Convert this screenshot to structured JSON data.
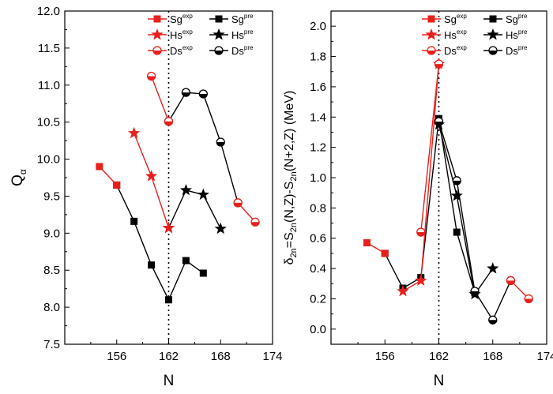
{
  "figure": {
    "panels": [
      {
        "xlabel": "N",
        "ylabel": "Q_α",
        "legend": [
          "Sg^exp",
          "Sg^pre",
          "Hs^exp",
          "Hs^pre",
          "Ds^exp",
          "Ds^pre"
        ]
      },
      {
        "xlabel": "N",
        "ylabel": "δ_2n=S_2n(N,Z)-S_2n(N+2,Z) (MeV)",
        "legend": [
          "Sg^exp",
          "Sg^pre",
          "Hs^exp",
          "Hs^pre",
          "Ds^exp",
          "Ds^pre"
        ]
      }
    ]
  },
  "chart_data": [
    {
      "type": "line",
      "xlabel": "N",
      "ylabel": "Qα",
      "xlim": [
        150,
        174
      ],
      "ylim": [
        7.5,
        12.0
      ],
      "xticks": [
        156,
        162,
        168,
        174
      ],
      "yticks": [
        7.5,
        8.0,
        8.5,
        9.0,
        9.5,
        10.0,
        10.5,
        11.0,
        11.5,
        12.0
      ],
      "ytick_labels": [
        "7.5",
        "8.0",
        "8.5",
        "9.0",
        "9.5",
        "10.0",
        "10.5",
        "11.0",
        "11.5",
        "12.0"
      ],
      "vline_x": 162,
      "legend_position": "top-right",
      "colors": {
        "exp": "#e8201c",
        "pre": "#000000"
      },
      "series": [
        {
          "name": "Sg^exp",
          "element": "Sg",
          "kind": "exp",
          "marker": "square",
          "color": "#e8201c",
          "segments": [
            {
              "x": [
                154,
                156
              ],
              "y": [
                9.9,
                9.65
              ]
            }
          ]
        },
        {
          "name": "Sg^pre",
          "element": "Sg",
          "kind": "pre",
          "marker": "square",
          "color": "#000000",
          "segments": [
            {
              "x": [
                156,
                158,
                160,
                162,
                164,
                166
              ],
              "y": [
                9.65,
                9.16,
                8.57,
                8.1,
                8.63,
                8.46
              ]
            }
          ]
        },
        {
          "name": "Hs^exp",
          "element": "Hs",
          "kind": "exp",
          "marker": "star",
          "color": "#e8201c",
          "segments": [
            {
              "x": [
                158,
                160,
                162
              ],
              "y": [
                10.35,
                9.77,
                9.07
              ]
            }
          ]
        },
        {
          "name": "Hs^pre",
          "element": "Hs",
          "kind": "pre",
          "marker": "star",
          "color": "#000000",
          "segments": [
            {
              "x": [
                162,
                164,
                166,
                168
              ],
              "y": [
                9.07,
                9.58,
                9.52,
                9.06
              ]
            }
          ]
        },
        {
          "name": "Ds^exp",
          "element": "Ds",
          "kind": "exp",
          "marker": "circle",
          "color": "#e8201c",
          "segments": [
            {
              "x": [
                160,
                162
              ],
              "y": [
                11.12,
                10.51
              ]
            },
            {
              "x": [
                170,
                172
              ],
              "y": [
                9.41,
                9.15
              ]
            }
          ]
        },
        {
          "name": "Ds^pre",
          "element": "Ds",
          "kind": "pre",
          "marker": "circle",
          "color": "#000000",
          "segments": [
            {
              "x": [
                162,
                164,
                166,
                168,
                170
              ],
              "y": [
                10.51,
                10.9,
                10.88,
                10.23,
                9.41
              ]
            }
          ]
        }
      ]
    },
    {
      "type": "line",
      "xlabel": "N",
      "ylabel": "δ2n=S2n(N,Z)-S2n(N+2,Z) (MeV)",
      "xlim": [
        150,
        174
      ],
      "ylim": [
        -0.1,
        2.1
      ],
      "xticks": [
        156,
        162,
        168,
        174
      ],
      "yticks": [
        0.0,
        0.2,
        0.4,
        0.6,
        0.8,
        1.0,
        1.2,
        1.4,
        1.6,
        1.8,
        2.0
      ],
      "ytick_labels": [
        "0.0",
        "0.2",
        "0.4",
        "0.6",
        "0.8",
        "1.0",
        "1.2",
        "1.4",
        "1.6",
        "1.8",
        "2.0"
      ],
      "vline_x": 162,
      "legend_position": "top-right",
      "colors": {
        "exp": "#e8201c",
        "pre": "#000000"
      },
      "series": [
        {
          "name": "Sg^exp",
          "element": "Sg",
          "kind": "exp",
          "marker": "square",
          "color": "#e8201c",
          "segments": [
            {
              "x": [
                154,
                156
              ],
              "y": [
                0.57,
                0.5
              ]
            }
          ]
        },
        {
          "name": "Sg^pre",
          "element": "Sg",
          "kind": "pre",
          "marker": "square",
          "color": "#000000",
          "segments": [
            {
              "x": [
                156,
                158,
                160,
                162,
                164,
                166
              ],
              "y": [
                0.5,
                0.27,
                0.34,
                1.39,
                0.64,
                0.24
              ]
            }
          ]
        },
        {
          "name": "Hs^exp",
          "element": "Hs",
          "kind": "exp",
          "marker": "star",
          "color": "#e8201c",
          "segments": [
            {
              "x": [
                158,
                160,
                162
              ],
              "y": [
                0.25,
                0.32,
                1.75
              ]
            }
          ]
        },
        {
          "name": "Hs^pre",
          "element": "Hs",
          "kind": "pre",
          "marker": "star",
          "color": "#000000",
          "segments": [
            {
              "x": [
                162,
                164,
                166,
                168
              ],
              "y": [
                1.35,
                0.88,
                0.23,
                0.4
              ]
            }
          ]
        },
        {
          "name": "Ds^exp",
          "element": "Ds",
          "kind": "exp",
          "marker": "circle",
          "color": "#e8201c",
          "segments": [
            {
              "x": [
                160,
                162
              ],
              "y": [
                0.64,
                1.75
              ]
            },
            {
              "x": [
                170,
                172
              ],
              "y": [
                0.32,
                0.2
              ]
            }
          ]
        },
        {
          "name": "Ds^pre",
          "element": "Ds",
          "kind": "pre",
          "marker": "circle",
          "color": "#000000",
          "segments": [
            {
              "x": [
                162,
                164,
                166,
                168,
                170
              ],
              "y": [
                1.37,
                0.98,
                0.25,
                0.06,
                0.32
              ]
            }
          ]
        }
      ]
    }
  ]
}
